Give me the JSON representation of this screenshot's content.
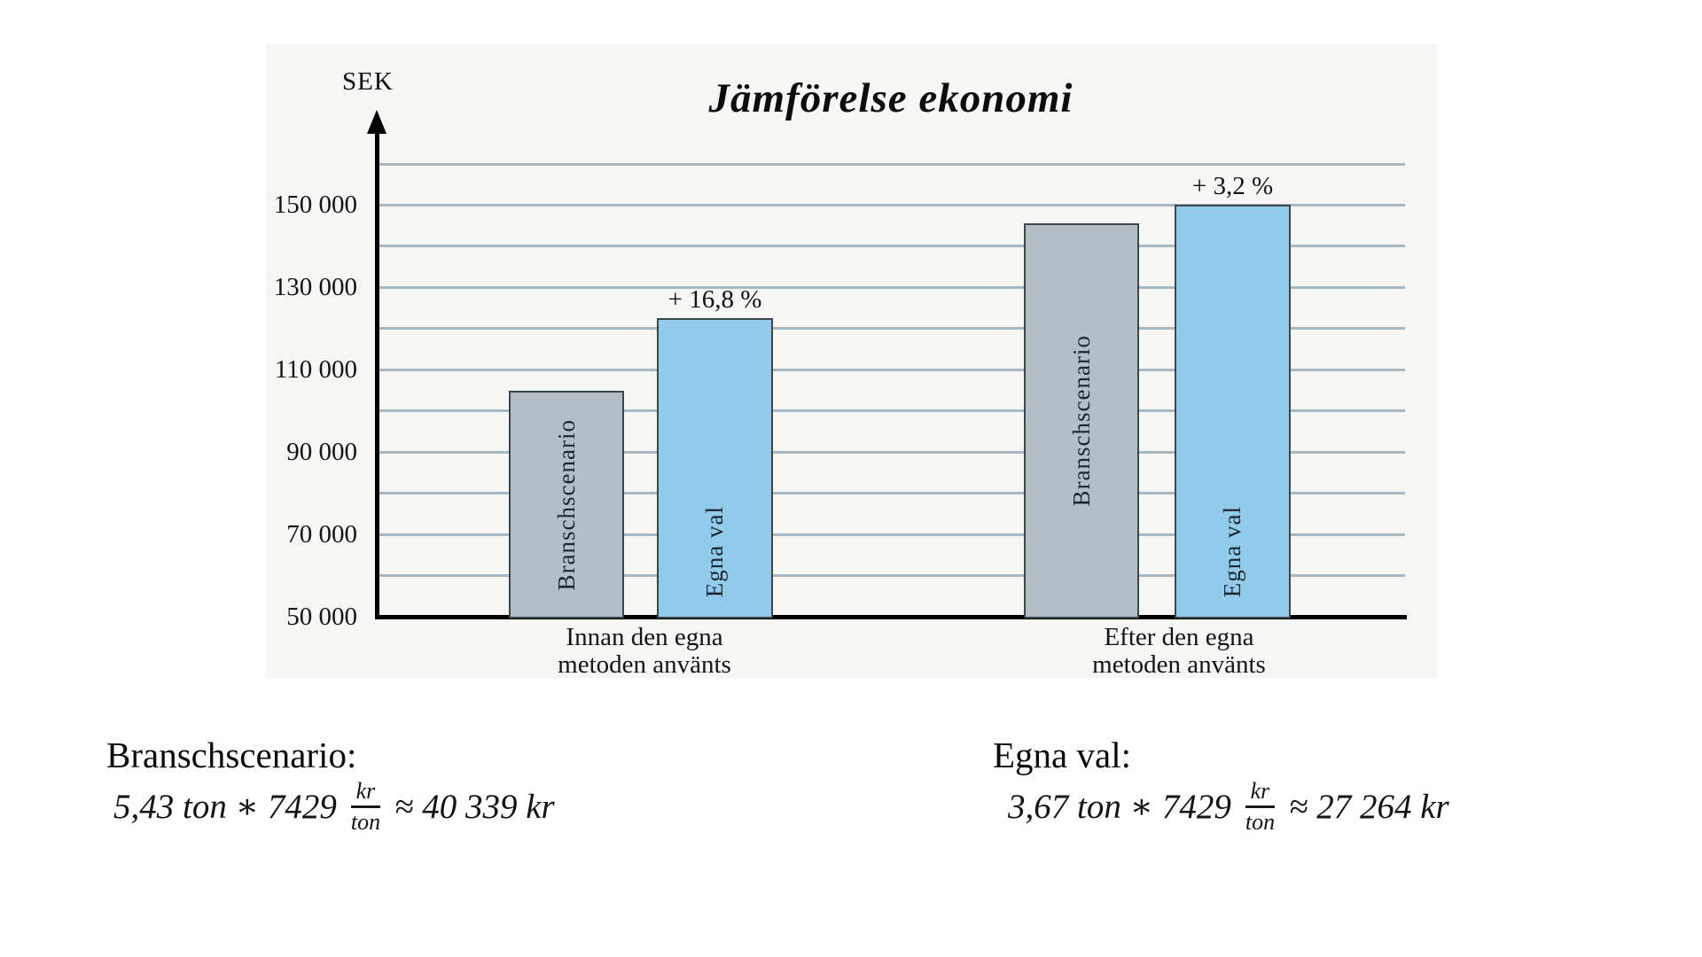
{
  "chart_data": {
    "type": "bar",
    "title": "Jämförelse ekonomi",
    "axis_unit_label": "SEK",
    "ylabel": "SEK",
    "xlabel": "",
    "ylim": [
      50000,
      160000
    ],
    "gridline_step": 10000,
    "grid": true,
    "legend_position": "none",
    "yticks": [
      {
        "label": "150 000",
        "value": 150000
      },
      {
        "label": "130 000",
        "value": 130000
      },
      {
        "label": "110 000",
        "value": 110000
      },
      {
        "label": "90 000",
        "value": 90000
      },
      {
        "label": "70 000",
        "value": 70000
      },
      {
        "label": "50 000",
        "value": 50000
      }
    ],
    "groups": [
      {
        "label": [
          "Innan den egna",
          "metoden använts"
        ],
        "bars": [
          {
            "name": "Branschscenario",
            "value": 105000,
            "style": "gray",
            "annotation": ""
          },
          {
            "name": "Egna val",
            "value": 122600,
            "style": "blue",
            "annotation": "+ 16,8 %"
          }
        ]
      },
      {
        "label": [
          "Efter den egna",
          "metoden använts"
        ],
        "bars": [
          {
            "name": "Branschscenario",
            "value": 145500,
            "style": "gray",
            "annotation": ""
          },
          {
            "name": "Egna val",
            "value": 150000,
            "style": "blue",
            "annotation": "+ 3,2 %"
          }
        ]
      }
    ],
    "colors": {
      "gray_bar": "#b4bec4",
      "blue_bar": "#92cbec",
      "bar_border": "#3d464d",
      "gridline": "#a6b8c3",
      "panel_background": "#f6f6f4",
      "axis": "#000000"
    }
  },
  "calculations": {
    "left": {
      "heading": "Branschscenario:",
      "expression_lead": "5,43 ton ∗ 7429",
      "fraction": {
        "numerator": "kr",
        "denominator": "ton"
      },
      "expression_tail": "≈ 40 339 kr"
    },
    "right": {
      "heading": "Egna val:",
      "expression_lead": "3,67 ton ∗ 7429",
      "fraction": {
        "numerator": "kr",
        "denominator": "ton"
      },
      "expression_tail": "≈ 27 264 kr"
    }
  }
}
